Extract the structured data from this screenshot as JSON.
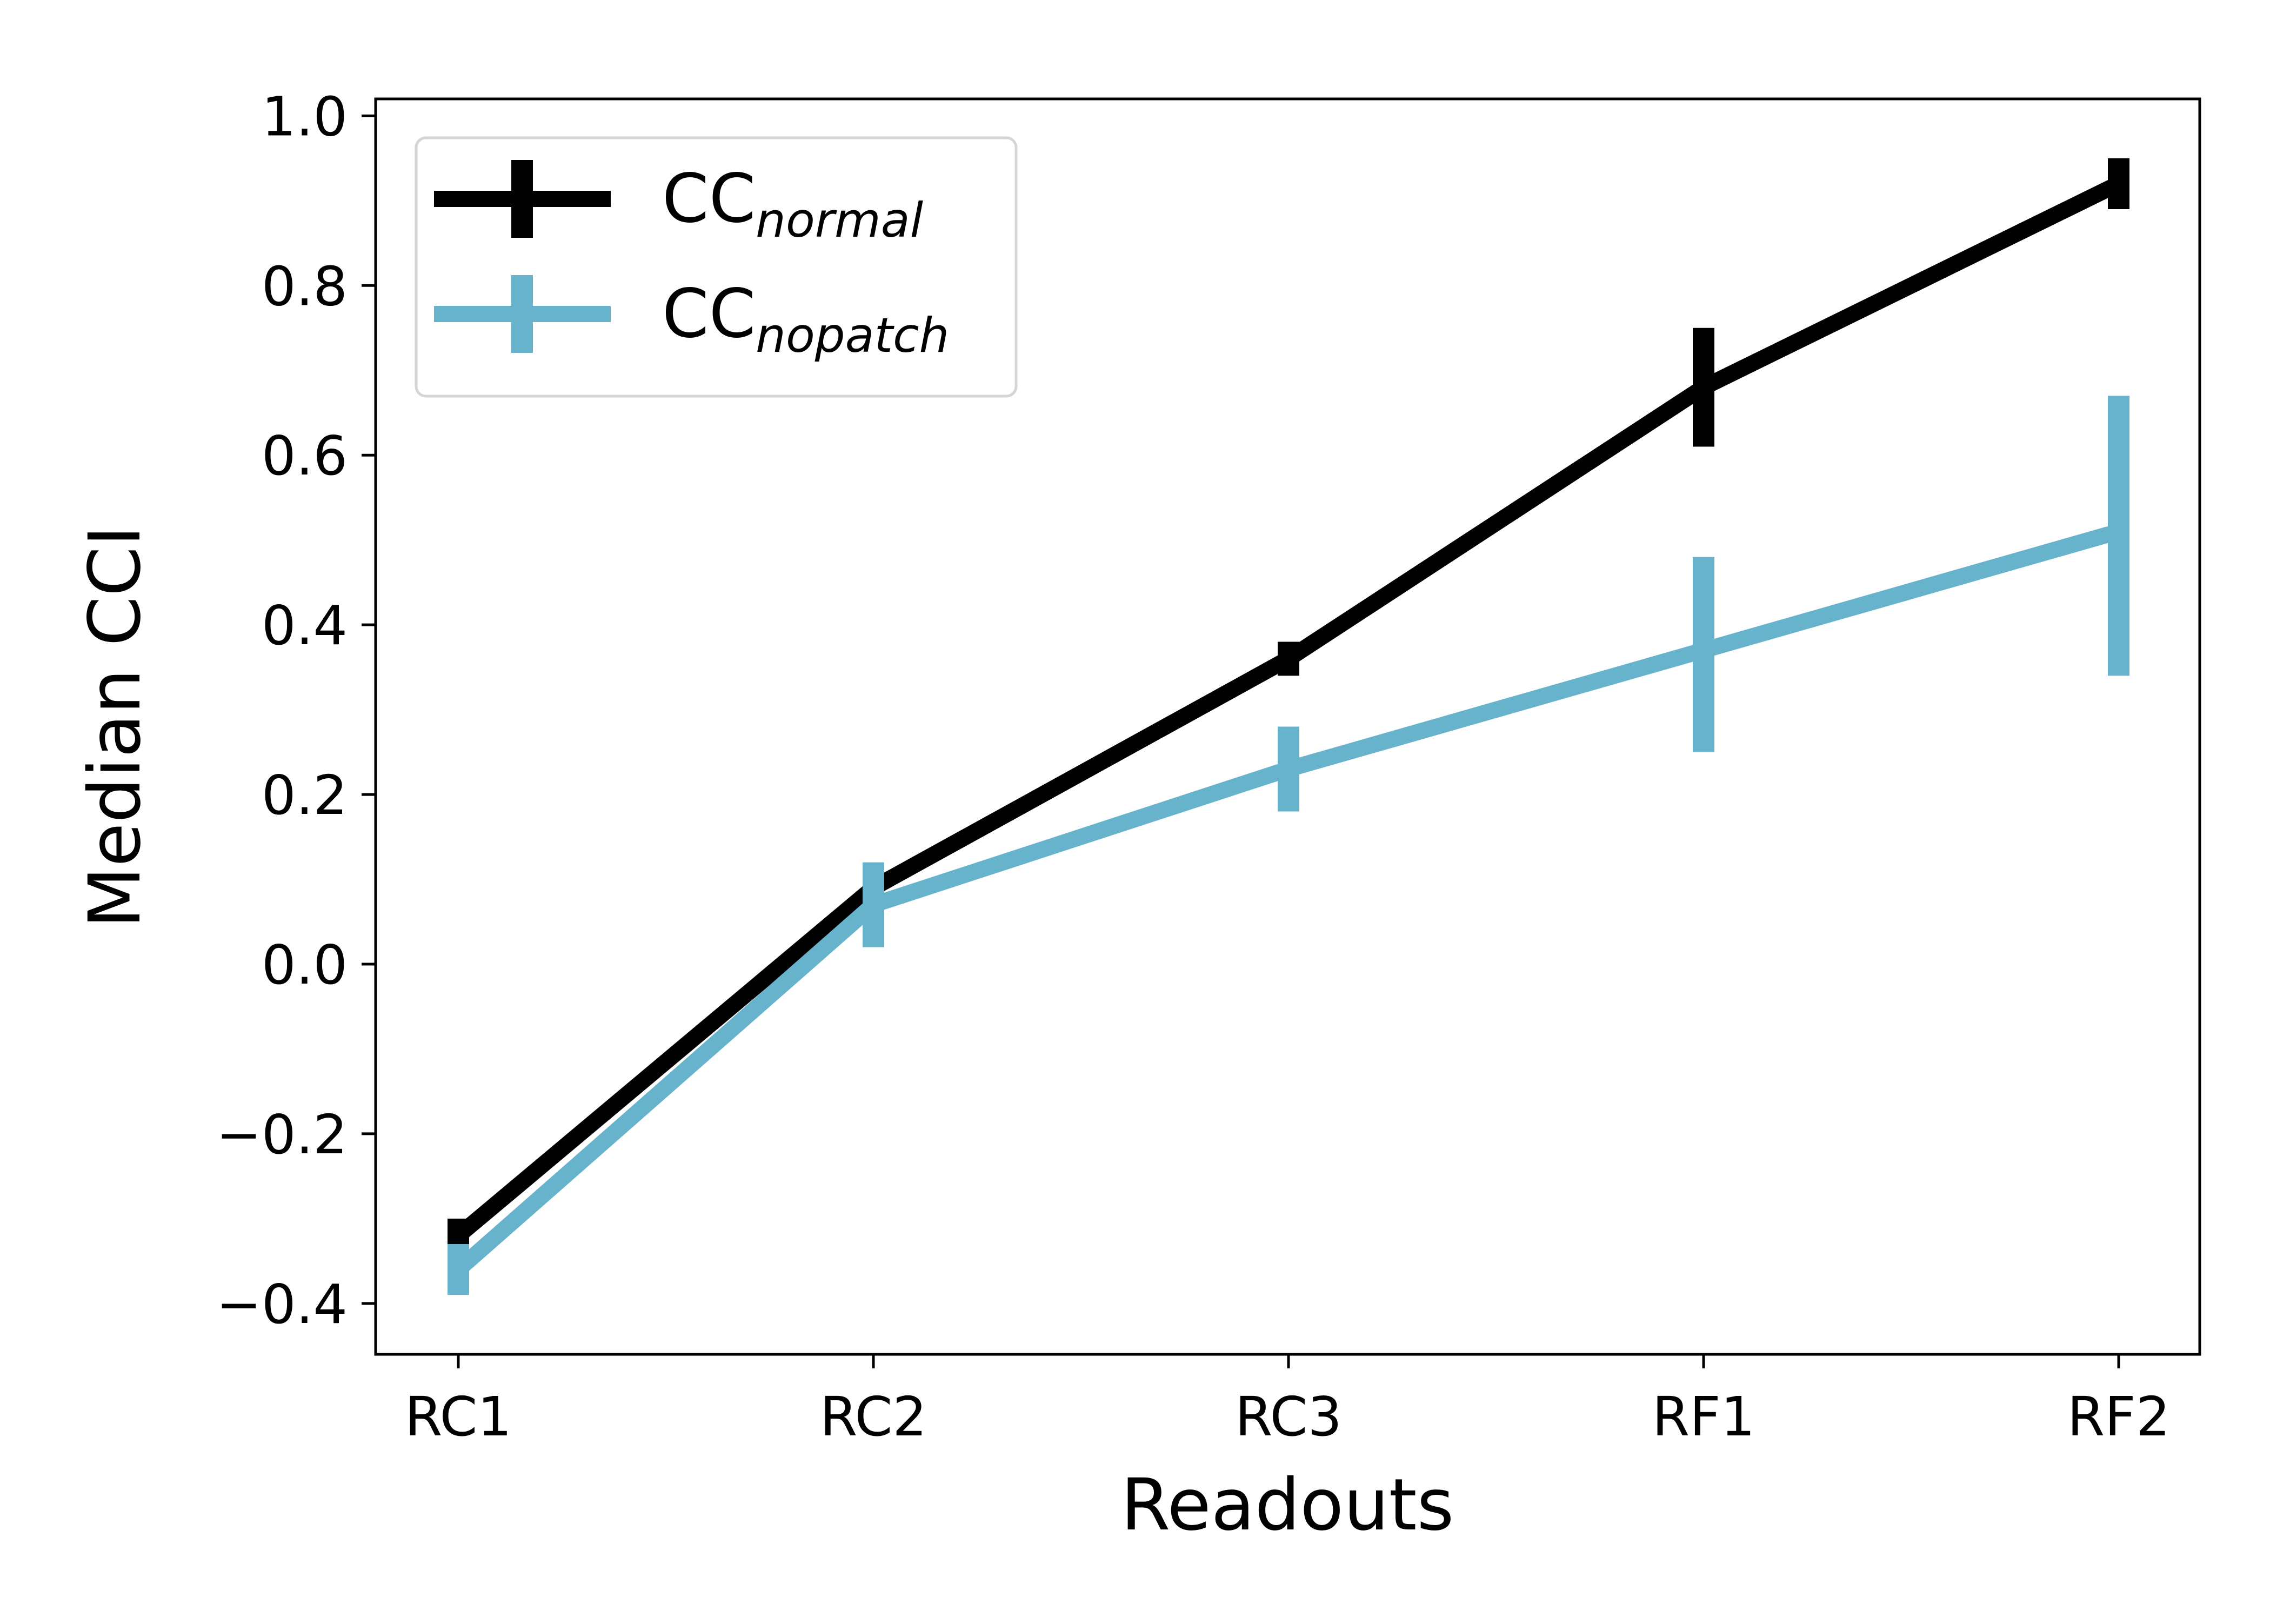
{
  "chart_data": {
    "type": "line",
    "title": "",
    "xlabel": "Readouts",
    "ylabel": "Median CCI",
    "categories": [
      "RC1",
      "RC2",
      "RC3",
      "RF1",
      "RF2"
    ],
    "ylim": [
      -0.46,
      1.02
    ],
    "yticks": [
      -0.4,
      -0.2,
      0.0,
      0.2,
      0.4,
      0.6,
      0.8,
      1.0
    ],
    "ytick_labels": [
      "−0.4",
      "−0.2",
      "0.0",
      "0.2",
      "0.4",
      "0.6",
      "0.8",
      "1.0"
    ],
    "grid": false,
    "legend_position": "upper-left",
    "series": [
      {
        "name": "CC",
        "name_subscript": "normal",
        "color": "#000000",
        "values": [
          -0.32,
          0.09,
          0.36,
          0.68,
          0.92
        ],
        "error_low": [
          -0.34,
          0.07,
          0.34,
          0.61,
          0.89
        ],
        "error_high": [
          -0.3,
          0.11,
          0.38,
          0.75,
          0.95
        ]
      },
      {
        "name": "CC",
        "name_subscript": "nopatch",
        "color": "#67b3cc",
        "values": [
          -0.36,
          0.07,
          0.23,
          0.37,
          0.51
        ],
        "error_low": [
          -0.39,
          0.02,
          0.18,
          0.25,
          0.34
        ],
        "error_high": [
          -0.33,
          0.12,
          0.28,
          0.48,
          0.67
        ]
      }
    ]
  }
}
